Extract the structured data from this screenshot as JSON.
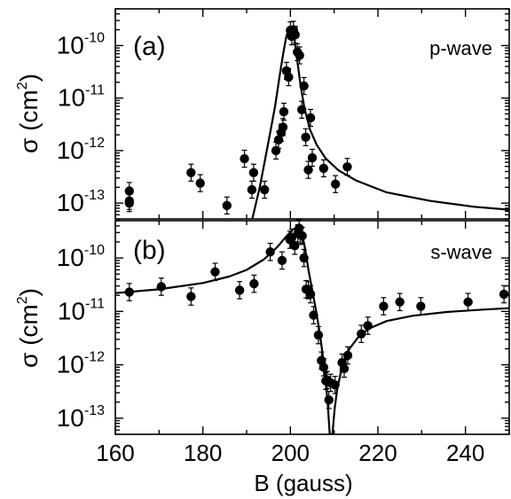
{
  "x_axis": {
    "label": "B (gauss)",
    "range": [
      160,
      250
    ],
    "ticks": [
      160,
      180,
      200,
      220,
      240
    ],
    "tick_labels": [
      "160",
      "180",
      "200",
      "220",
      "240"
    ]
  },
  "chart_data": [
    {
      "type": "scatter",
      "panel": "(a)",
      "annotation": "p-wave",
      "ylabel": "σ (cm²)",
      "yscale": "log",
      "ylim": [
        5e-14,
        5e-10
      ],
      "ytick_values": [
        1e-13,
        1e-12,
        1e-11,
        1e-10
      ],
      "ytick_labels": [
        {
          "base": "10",
          "exp": "-13"
        },
        {
          "base": "10",
          "exp": "-12"
        },
        {
          "base": "10",
          "exp": "-11"
        },
        {
          "base": "10",
          "exp": "-10"
        }
      ],
      "x": [
        163.2,
        163.2,
        163.2,
        177.3,
        179.4,
        185.5,
        189.5,
        191.2,
        191.6,
        194.1,
        196.7,
        197.3,
        197.9,
        198.3,
        198.5,
        199.1,
        199.6,
        200.0,
        200.3,
        200.7,
        201.1,
        201.6,
        202.1,
        202.6,
        203.1,
        203.5,
        204.1,
        204.6,
        205.0,
        207.6,
        210.3,
        213.0
      ],
      "y": [
        1.7e-13,
        1.1e-13,
        1e-13,
        3.8e-13,
        2.4e-13,
        9e-14,
        7e-13,
        1.8e-13,
        3.8e-13,
        1.8e-13,
        1e-12,
        1.6e-12,
        2.2e-12,
        2.8e-12,
        5.5e-12,
        3.3e-11,
        2.5e-11,
        1.95e-10,
        1.5e-10,
        2e-10,
        1.6e-10,
        7.5e-11,
        6.5e-11,
        6e-12,
        1.7e-11,
        1.8e-12,
        4.3e-13,
        4.2e-12,
        7.3e-13,
        4.6e-13,
        2.3e-13,
        4.9e-13
      ],
      "fit_line": {
        "x": [
          191.3,
          193.0,
          195.0,
          196.5,
          197.5,
          198.3,
          199.0,
          199.6,
          200.1,
          200.6,
          201.0,
          201.6,
          202.3,
          203.2,
          204.5,
          206.0,
          208.0,
          211.0,
          215.0,
          222.0,
          232.0,
          242.0,
          250.0
        ],
        "y": [
          5e-14,
          2e-13,
          1.5e-12,
          7e-12,
          2.5e-11,
          6.5e-11,
          1.4e-10,
          2.1e-10,
          2.2e-10,
          1.85e-10,
          1.2e-10,
          5e-11,
          1.8e-11,
          6.5e-12,
          2.5e-12,
          1.3e-12,
          7.2e-13,
          4.2e-13,
          2.7e-13,
          1.6e-13,
          1.1e-13,
          8.5e-14,
          7.5e-14
        ]
      }
    },
    {
      "type": "scatter",
      "panel": "(b)",
      "annotation": "s-wave",
      "ylabel": "σ (cm²)",
      "yscale": "log",
      "ylim": [
        5e-14,
        5e-10
      ],
      "ytick_values": [
        1e-13,
        1e-12,
        1e-11,
        1e-10
      ],
      "ytick_labels": [
        {
          "base": "10",
          "exp": "-13"
        },
        {
          "base": "10",
          "exp": "-12"
        },
        {
          "base": "10",
          "exp": "-11"
        },
        {
          "base": "10",
          "exp": "-10"
        }
      ],
      "x": [
        163.2,
        170.5,
        177.3,
        182.8,
        188.4,
        191.7,
        195.4,
        198.1,
        199.9,
        200.3,
        201.0,
        201.7,
        202.0,
        202.3,
        202.7,
        203.1,
        203.6,
        204.1,
        204.6,
        205.3,
        206.4,
        207.1,
        207.6,
        208.1,
        208.4,
        208.8,
        209.2,
        210.2,
        211.8,
        212.3,
        213.1,
        216.2,
        217.7,
        221.3,
        225.0,
        229.8,
        240.6,
        248.8
      ],
      "y": [
        2.3e-11,
        2.9e-11,
        1.9e-11,
        5.5e-11,
        2.5e-11,
        3.3e-11,
        1.3e-10,
        9e-11,
        2.2e-10,
        2.4e-10,
        1.7e-10,
        2.9e-10,
        3.6e-10,
        2.7e-10,
        2.6e-10,
        1e-10,
        2.6e-11,
        2.5e-11,
        2.1e-11,
        8.5e-12,
        3.6e-12,
        1.2e-12,
        9e-13,
        5e-13,
        5.2e-13,
        2.2e-13,
        4.6e-13,
        4.2e-13,
        1.1e-12,
        8.5e-13,
        1.5e-12,
        3.8e-12,
        5.4e-12,
        1.25e-11,
        1.5e-11,
        1.25e-11,
        1.5e-11,
        2.1e-11
      ],
      "fit_line": {
        "x": [
          160,
          170,
          180,
          186,
          190,
          194,
          197,
          199,
          200.5,
          201.8,
          202.5,
          203.3,
          204.2,
          205.0,
          206.0,
          206.8,
          207.5,
          208.0,
          208.5,
          209.0,
          209.6,
          210.1,
          210.7,
          211.4,
          212.3,
          213.5,
          215.5,
          218,
          222,
          228,
          236,
          244,
          250
        ],
        "y": [
          2.2e-11,
          2.6e-11,
          3.4e-11,
          4.5e-11,
          6e-11,
          9.5e-11,
          1.6e-10,
          2.5e-10,
          3.4e-10,
          3.8e-10,
          3.2e-10,
          1.6e-10,
          5.5e-11,
          2.5e-11,
          9e-12,
          3.5e-12,
          1.3e-12,
          5.5e-13,
          2e-13,
          5e-14,
          5e-14,
          1.5e-13,
          3.5e-13,
          6.5e-13,
          1.2e-12,
          2e-12,
          3.3e-12,
          4.8e-12,
          6.6e-12,
          8.3e-12,
          9.8e-12,
          1.08e-11,
          1.15e-11
        ]
      }
    }
  ]
}
